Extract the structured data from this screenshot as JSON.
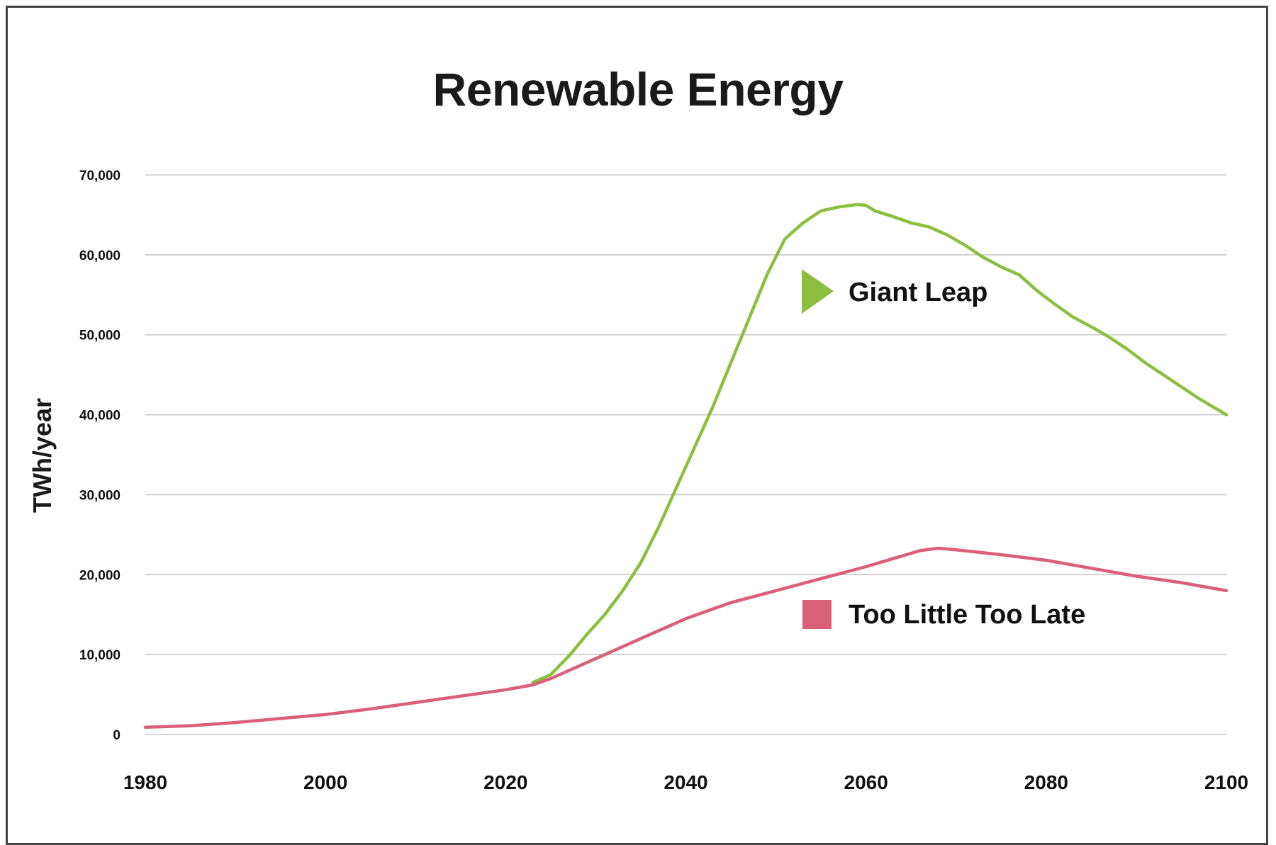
{
  "chart_data": {
    "type": "line",
    "title": "Renewable Energy",
    "xlabel": "",
    "ylabel": "TWh/year",
    "xlim": [
      1980,
      2100
    ],
    "ylim": [
      0,
      70000
    ],
    "x_ticks": [
      "1980",
      "2000",
      "2020",
      "2040",
      "2060",
      "2080",
      "2100"
    ],
    "y_ticks": [
      "0",
      "10,000",
      "20,000",
      "30,000",
      "40,000",
      "50,000",
      "60,000",
      "70,000"
    ],
    "grid": true,
    "legend_placement": "inside, center-right",
    "series": [
      {
        "name": "Giant Leap",
        "color": "#8cbf3f",
        "marker": "triangle",
        "x": [
          2023,
          2025,
          2027,
          2029,
          2031,
          2033,
          2035,
          2037,
          2039,
          2041,
          2043,
          2045,
          2047,
          2049,
          2051,
          2053,
          2055,
          2057,
          2059,
          2060,
          2061,
          2063,
          2065,
          2067,
          2069,
          2071,
          2073,
          2075,
          2077,
          2079,
          2081,
          2083,
          2085,
          2087,
          2089,
          2091,
          2093,
          2095,
          2097,
          2100
        ],
        "values": [
          6500,
          7500,
          9800,
          12500,
          15000,
          18000,
          21500,
          26000,
          31000,
          36000,
          41000,
          46500,
          52000,
          57500,
          62000,
          64000,
          65500,
          66000,
          66300,
          66200,
          65500,
          64800,
          64000,
          63500,
          62500,
          61200,
          59700,
          58500,
          57500,
          55500,
          53800,
          52200,
          51000,
          49700,
          48200,
          46500,
          45000,
          43500,
          42000,
          40000
        ]
      },
      {
        "name": "Too Little Too Late",
        "color": "#d95f7b",
        "marker": "square",
        "x": [
          1980,
          1985,
          1990,
          1995,
          2000,
          2005,
          2010,
          2015,
          2020,
          2023,
          2025,
          2030,
          2035,
          2040,
          2045,
          2050,
          2055,
          2060,
          2063,
          2066,
          2068,
          2070,
          2075,
          2080,
          2085,
          2090,
          2095,
          2100
        ],
        "values": [
          900,
          1100,
          1500,
          2000,
          2500,
          3200,
          4000,
          4800,
          5600,
          6200,
          7000,
          9500,
          12000,
          14500,
          16500,
          18000,
          19500,
          21000,
          22000,
          23000,
          23300,
          23100,
          22500,
          21800,
          20800,
          19800,
          19000,
          18000
        ]
      }
    ]
  }
}
